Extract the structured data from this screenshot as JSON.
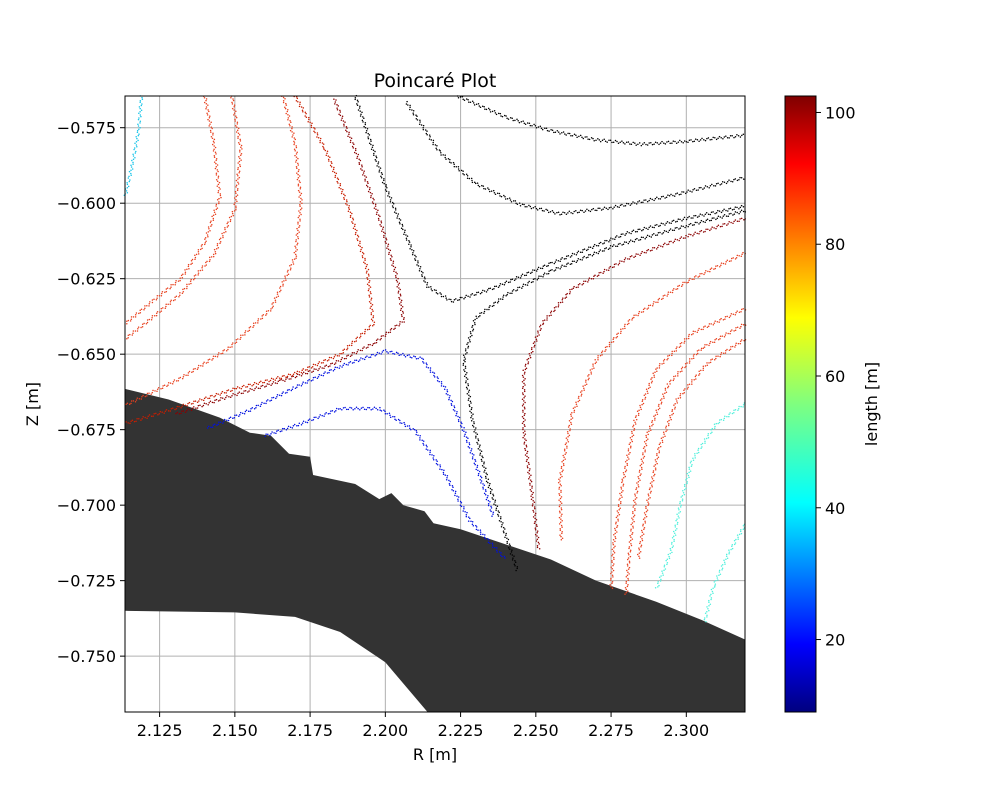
{
  "chart_data": {
    "type": "scatter",
    "title": "Poincaré Plot",
    "xlabel": "R [m]",
    "ylabel": "Z [m]",
    "xlim": [
      2.1135,
      2.3195
    ],
    "ylim": [
      -0.7685,
      -0.5645
    ],
    "x_ticks": [
      "2.125",
      "2.150",
      "2.175",
      "2.200",
      "2.225",
      "2.250",
      "2.275",
      "2.300"
    ],
    "x_tick_values": [
      2.125,
      2.15,
      2.175,
      2.2,
      2.225,
      2.25,
      2.275,
      2.3
    ],
    "y_ticks": [
      "−0.575",
      "−0.600",
      "−0.625",
      "−0.650",
      "−0.675",
      "−0.700",
      "−0.725",
      "−0.750"
    ],
    "y_tick_values": [
      -0.575,
      -0.6,
      -0.625,
      -0.65,
      -0.675,
      -0.7,
      -0.725,
      -0.75
    ],
    "grid": true,
    "colorbar": {
      "label": "length [m]",
      "colormap": "jet",
      "range": [
        9,
        102.5
      ],
      "ticks": [
        "20",
        "40",
        "60",
        "80",
        "100"
      ],
      "tick_values": [
        20,
        40,
        60,
        80,
        100
      ]
    },
    "wall": {
      "color": "#333333",
      "outline": [
        [
          2.1135,
          -0.6615
        ],
        [
          2.128,
          -0.665
        ],
        [
          2.145,
          -0.671
        ],
        [
          2.155,
          -0.676
        ],
        [
          2.162,
          -0.677
        ],
        [
          2.168,
          -0.683
        ],
        [
          2.175,
          -0.684
        ],
        [
          2.176,
          -0.69
        ],
        [
          2.19,
          -0.693
        ],
        [
          2.198,
          -0.698
        ],
        [
          2.202,
          -0.696
        ],
        [
          2.206,
          -0.7
        ],
        [
          2.213,
          -0.702
        ],
        [
          2.216,
          -0.706
        ],
        [
          2.225,
          -0.708
        ],
        [
          2.24,
          -0.713
        ],
        [
          2.255,
          -0.718
        ],
        [
          2.27,
          -0.725
        ],
        [
          2.29,
          -0.732
        ],
        [
          2.305,
          -0.738
        ],
        [
          2.3195,
          -0.7445
        ],
        [
          2.3195,
          -0.7685
        ],
        [
          2.214,
          -0.7685
        ],
        [
          2.2,
          -0.752
        ],
        [
          2.185,
          -0.742
        ],
        [
          2.17,
          -0.737
        ],
        [
          2.15,
          -0.7355
        ],
        [
          2.1135,
          -0.735
        ]
      ]
    },
    "series": [
      {
        "values_mean": 100,
        "color": "#000000",
        "points": [
          [
            2.224,
            -0.5645
          ],
          [
            2.24,
            -0.5715
          ],
          [
            2.255,
            -0.576
          ],
          [
            2.27,
            -0.579
          ],
          [
            2.285,
            -0.5805
          ],
          [
            2.3,
            -0.5795
          ],
          [
            2.3195,
            -0.5775
          ]
        ]
      },
      {
        "values_mean": 100,
        "color": "#000000",
        "points": [
          [
            2.207,
            -0.5665
          ],
          [
            2.218,
            -0.583
          ],
          [
            2.23,
            -0.5935
          ],
          [
            2.245,
            -0.6005
          ],
          [
            2.258,
            -0.6035
          ],
          [
            2.275,
            -0.6015
          ],
          [
            2.295,
            -0.5975
          ],
          [
            2.3195,
            -0.5915
          ]
        ]
      },
      {
        "values_mean": 100,
        "color": "#000000",
        "points": [
          [
            2.19,
            -0.5645
          ],
          [
            2.2,
            -0.5945
          ],
          [
            2.208,
            -0.6135
          ],
          [
            2.214,
            -0.6275
          ],
          [
            2.222,
            -0.6325
          ],
          [
            2.235,
            -0.6285
          ],
          [
            2.255,
            -0.62
          ],
          [
            2.28,
            -0.61
          ],
          [
            2.3,
            -0.605
          ],
          [
            2.3195,
            -0.601
          ]
        ]
      },
      {
        "values_mean": 100,
        "color": "#000000",
        "points": [
          [
            2.3195,
            -0.6025
          ],
          [
            2.3,
            -0.6075
          ],
          [
            2.275,
            -0.6145
          ],
          [
            2.255,
            -0.6225
          ],
          [
            2.24,
            -0.6305
          ],
          [
            2.23,
            -0.638
          ],
          [
            2.226,
            -0.652
          ],
          [
            2.229,
            -0.672
          ],
          [
            2.234,
            -0.692
          ],
          [
            2.24,
            -0.71
          ],
          [
            2.244,
            -0.722
          ]
        ]
      },
      {
        "values_mean": 100,
        "color": "#8b0000",
        "points": [
          [
            2.3195,
            -0.605
          ],
          [
            2.3,
            -0.611
          ],
          [
            2.28,
            -0.6185
          ],
          [
            2.262,
            -0.6285
          ],
          [
            2.252,
            -0.64
          ],
          [
            2.246,
            -0.656
          ],
          [
            2.246,
            -0.676
          ],
          [
            2.249,
            -0.698
          ],
          [
            2.251,
            -0.715
          ]
        ]
      },
      {
        "values_mean": 100,
        "color": "#8b0000",
        "points": [
          [
            2.183,
            -0.5655
          ],
          [
            2.191,
            -0.585
          ],
          [
            2.198,
            -0.605
          ],
          [
            2.204,
            -0.625
          ],
          [
            2.206,
            -0.639
          ],
          [
            2.196,
            -0.6465
          ],
          [
            2.182,
            -0.6535
          ],
          [
            2.165,
            -0.659
          ],
          [
            2.148,
            -0.664
          ],
          [
            2.13,
            -0.67
          ]
        ]
      },
      {
        "values_mean": 96,
        "color": "#c81e00",
        "points": [
          [
            2.17,
            -0.5645
          ],
          [
            2.18,
            -0.582
          ],
          [
            2.188,
            -0.602
          ],
          [
            2.194,
            -0.622
          ],
          [
            2.196,
            -0.64
          ],
          [
            2.185,
            -0.65
          ],
          [
            2.17,
            -0.6565
          ],
          [
            2.15,
            -0.6615
          ],
          [
            2.13,
            -0.668
          ],
          [
            2.1135,
            -0.673
          ]
        ]
      },
      {
        "values_mean": 92,
        "color": "#e8401e",
        "points": [
          [
            2.166,
            -0.5645
          ],
          [
            2.17,
            -0.58
          ],
          [
            2.172,
            -0.6
          ],
          [
            2.17,
            -0.618
          ],
          [
            2.162,
            -0.635
          ],
          [
            2.148,
            -0.648
          ],
          [
            2.132,
            -0.658
          ],
          [
            2.1135,
            -0.667
          ]
        ]
      },
      {
        "values_mean": 92,
        "color": "#e8401e",
        "points": [
          [
            2.14,
            -0.5645
          ],
          [
            2.143,
            -0.58
          ],
          [
            2.145,
            -0.598
          ],
          [
            2.14,
            -0.613
          ],
          [
            2.132,
            -0.625
          ],
          [
            2.122,
            -0.633
          ],
          [
            2.1135,
            -0.64
          ]
        ]
      },
      {
        "values_mean": 92,
        "color": "#e8401e",
        "points": [
          [
            2.149,
            -0.5645
          ],
          [
            2.152,
            -0.582
          ],
          [
            2.15,
            -0.602
          ],
          [
            2.143,
            -0.617
          ],
          [
            2.132,
            -0.63
          ],
          [
            2.12,
            -0.64
          ],
          [
            2.1135,
            -0.645
          ]
        ]
      },
      {
        "values_mean": 92,
        "color": "#e8401e",
        "points": [
          [
            2.3195,
            -0.6165
          ],
          [
            2.3,
            -0.626
          ],
          [
            2.282,
            -0.638
          ],
          [
            2.27,
            -0.652
          ],
          [
            2.262,
            -0.67
          ],
          [
            2.258,
            -0.692
          ],
          [
            2.2585,
            -0.712
          ]
        ]
      },
      {
        "values_mean": 92,
        "color": "#e8401e",
        "points": [
          [
            2.3195,
            -0.635
          ],
          [
            2.302,
            -0.643
          ],
          [
            2.29,
            -0.655
          ],
          [
            2.283,
            -0.672
          ],
          [
            2.279,
            -0.692
          ],
          [
            2.276,
            -0.712
          ],
          [
            2.275,
            -0.728
          ]
        ]
      },
      {
        "values_mean": 92,
        "color": "#e8401e",
        "points": [
          [
            2.3195,
            -0.64
          ],
          [
            2.305,
            -0.648
          ],
          [
            2.294,
            -0.66
          ],
          [
            2.287,
            -0.677
          ],
          [
            2.283,
            -0.698
          ],
          [
            2.281,
            -0.717
          ],
          [
            2.28,
            -0.73
          ]
        ]
      },
      {
        "values_mean": 92,
        "color": "#e8401e",
        "points": [
          [
            2.3195,
            -0.645
          ],
          [
            2.307,
            -0.653
          ],
          [
            2.297,
            -0.665
          ],
          [
            2.291,
            -0.681
          ],
          [
            2.287,
            -0.7
          ],
          [
            2.284,
            -0.718
          ]
        ]
      },
      {
        "values_mean": 18,
        "color": "#0010e0",
        "points": [
          [
            2.141,
            -0.6745
          ],
          [
            2.155,
            -0.6685
          ],
          [
            2.17,
            -0.661
          ],
          [
            2.185,
            -0.654
          ],
          [
            2.2,
            -0.649
          ],
          [
            2.212,
            -0.6515
          ],
          [
            2.22,
            -0.6615
          ],
          [
            2.226,
            -0.675
          ],
          [
            2.232,
            -0.692
          ],
          [
            2.236,
            -0.704
          ]
        ]
      },
      {
        "values_mean": 18,
        "color": "#0010e0",
        "points": [
          [
            2.16,
            -0.677
          ],
          [
            2.172,
            -0.673
          ],
          [
            2.185,
            -0.668
          ],
          [
            2.198,
            -0.668
          ],
          [
            2.21,
            -0.6755
          ],
          [
            2.22,
            -0.69
          ],
          [
            2.228,
            -0.705
          ],
          [
            2.24,
            -0.718
          ]
        ]
      },
      {
        "values_mean": 38,
        "color": "#18c4e8",
        "points": [
          [
            2.119,
            -0.5645
          ],
          [
            2.118,
            -0.576
          ],
          [
            2.116,
            -0.587
          ],
          [
            2.1135,
            -0.598
          ]
        ]
      },
      {
        "values_mean": 46,
        "color": "#50f0dc",
        "points": [
          [
            2.3195,
            -0.6665
          ],
          [
            2.31,
            -0.673
          ],
          [
            2.302,
            -0.685
          ],
          [
            2.298,
            -0.7
          ],
          [
            2.295,
            -0.715
          ],
          [
            2.29,
            -0.728
          ]
        ]
      },
      {
        "values_mean": 46,
        "color": "#50f0dc",
        "points": [
          [
            2.3195,
            -0.7065
          ],
          [
            2.314,
            -0.716
          ],
          [
            2.309,
            -0.727
          ],
          [
            2.306,
            -0.739
          ]
        ]
      }
    ]
  }
}
